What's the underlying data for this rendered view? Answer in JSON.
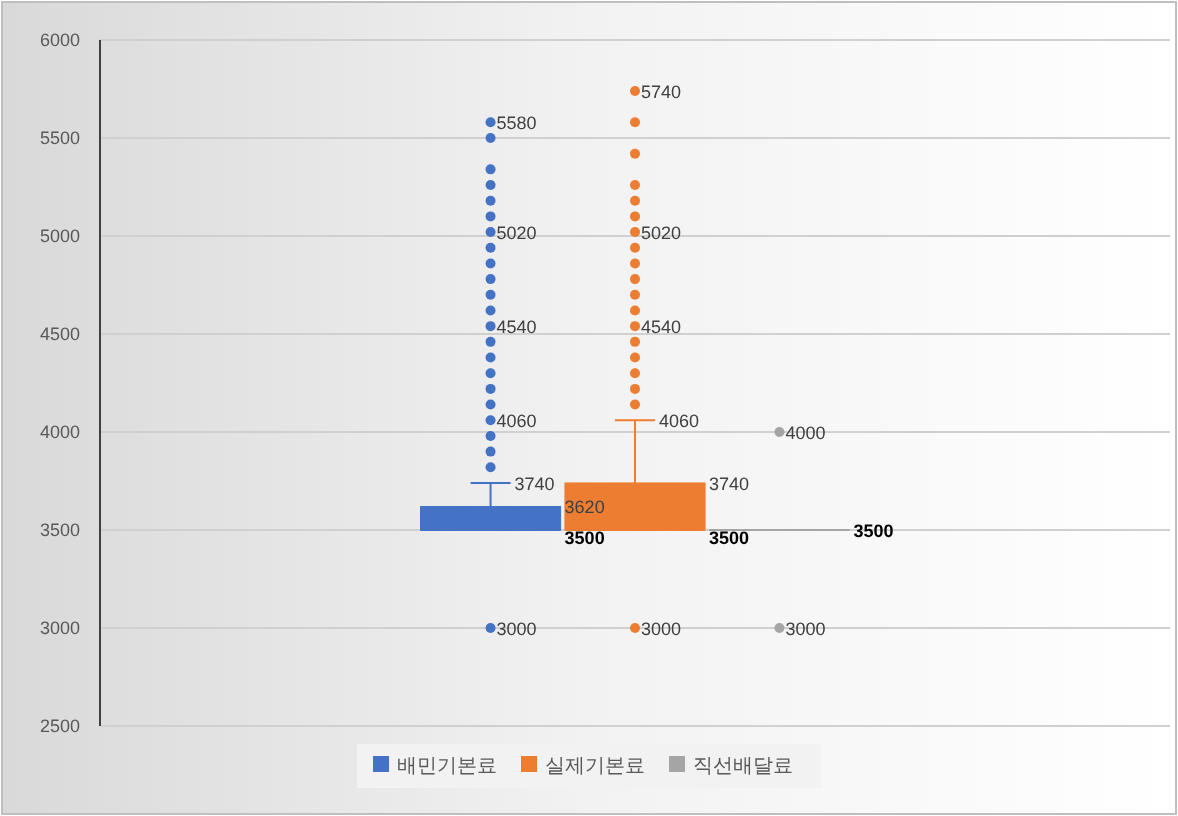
{
  "chart_data": {
    "type": "box",
    "categories": [
      null
    ],
    "series": [
      {
        "name": "배민기본료",
        "color": "#4472c4",
        "boxes": [
          {
            "low": 3500,
            "q1": 3500,
            "median": 3500,
            "q3": 3620,
            "high": 3740,
            "outliers": [
              3000,
              3820,
              3900,
              3980,
              4060,
              4140,
              4220,
              4300,
              4380,
              4460,
              4540,
              4620,
              4700,
              4780,
              4860,
              4940,
              5020,
              5100,
              5180,
              5260,
              5340,
              5500,
              5580
            ]
          }
        ]
      },
      {
        "name": "실제기본료",
        "color": "#ed7d31",
        "boxes": [
          {
            "low": 3500,
            "q1": 3500,
            "median": 3500,
            "q3": 3740,
            "high": 4060,
            "outliers": [
              3000,
              4140,
              4220,
              4300,
              4380,
              4460,
              4540,
              4620,
              4700,
              4780,
              4860,
              4940,
              5020,
              5100,
              5180,
              5260,
              5420,
              5580,
              5740
            ]
          }
        ]
      },
      {
        "name": "직선배달료",
        "color": "#a5a5a5",
        "boxes": [
          {
            "low": 3500,
            "q1": 3500,
            "median": 3500,
            "q3": 3500,
            "high": 3500,
            "outliers": [
              3000,
              4000
            ]
          }
        ]
      }
    ],
    "ylim": [
      2500,
      6000
    ],
    "yticks": [
      2500,
      3000,
      3500,
      4000,
      4500,
      5000,
      5500,
      6000
    ],
    "grid": "y",
    "legend": "bottom",
    "annotations": [
      "5580",
      "5020",
      "4540",
      "4060",
      "3740",
      "3620",
      "3500",
      "3000",
      "5740",
      "5020",
      "4540",
      "4060",
      "3740",
      "3500",
      "3000",
      "4000",
      "3500",
      "3000"
    ]
  }
}
